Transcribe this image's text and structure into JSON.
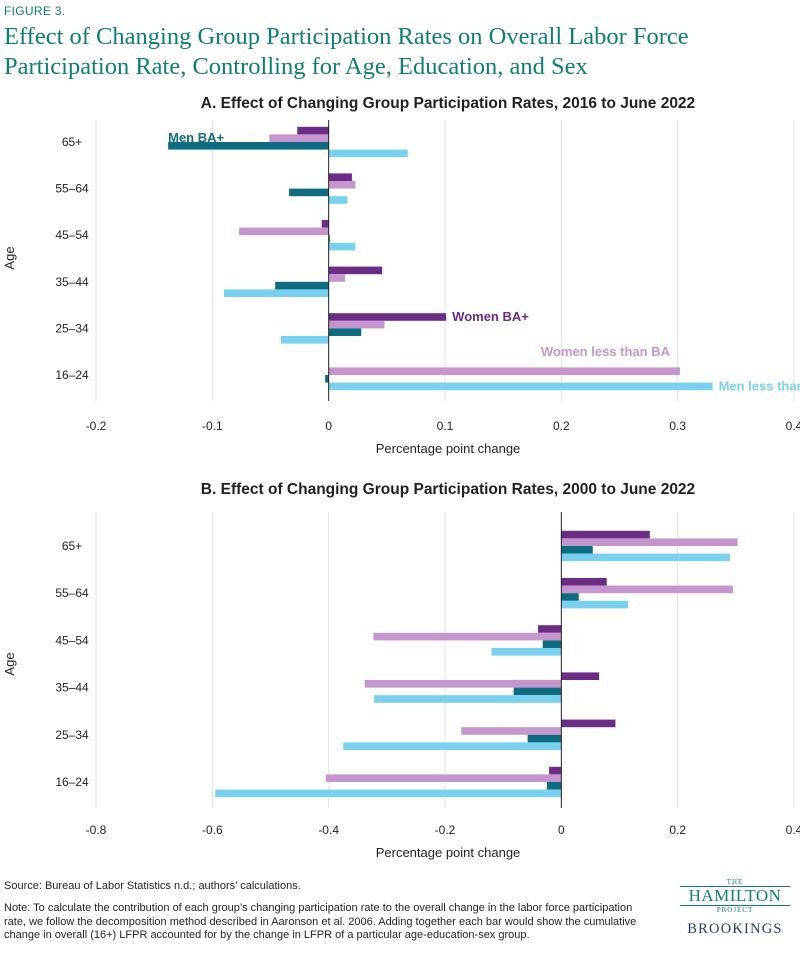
{
  "figure_label": "FIGURE 3.",
  "title": "Effect of Changing Group Participation Rates on Overall Labor Force Participation Rate, Controlling for Age, Education, and Sex",
  "source": "Source: Bureau of Labor Statistics n.d.; authors’ calculations.",
  "note": "Note: To calculate the contribution of each group’s changing participation rate to the overall change in the labor force participation rate, we follow the decomposition method described in Aaronson et al. 2006. Adding together each bar would show the cumulative change in overall (16+) LFPR accounted for by the change in LFPR of a particular age-education-sex group.",
  "logo": {
    "the": "THE",
    "hamilton": "HAMILTON",
    "project": "PROJECT",
    "brookings": "BROOKINGS"
  },
  "colors": {
    "Women BA+": "#6b2c85",
    "Women less than BA": "#c596cd",
    "Men BA+": "#0e6b80",
    "Men less than BA": "#79d0ef",
    "title": "#0f7f75"
  },
  "chart_data": [
    {
      "type": "bar",
      "orientation": "horizontal",
      "title": "A. Effect of Changing Group Participation Rates, 2016 to June 2022",
      "xlabel": "Percentage point change",
      "ylabel": "Age",
      "xlim": [
        -0.2,
        0.4
      ],
      "xticks": [
        -0.2,
        -0.1,
        0,
        0.1,
        0.2,
        0.3,
        0.4
      ],
      "xtick_labels": [
        "-0.2",
        "-0.1",
        "0",
        "0.1",
        "0.2",
        "0.3",
        "0.4"
      ],
      "grid": true,
      "categories": [
        "65+",
        "55–64",
        "45–54",
        "35–44",
        "25–34",
        "16–24"
      ],
      "series": [
        {
          "name": "Women BA+",
          "values": [
            -0.027,
            0.02,
            -0.006,
            0.046,
            0.101,
            0.0
          ]
        },
        {
          "name": "Women less than BA",
          "values": [
            -0.051,
            0.023,
            -0.077,
            0.014,
            0.048,
            0.302
          ]
        },
        {
          "name": "Men BA+",
          "values": [
            -0.138,
            -0.034,
            0.001,
            -0.046,
            0.028,
            -0.003
          ]
        },
        {
          "name": "Men less than BA",
          "values": [
            0.068,
            0.016,
            0.023,
            -0.09,
            -0.041,
            0.33
          ]
        }
      ],
      "annotations": [
        {
          "text": "Men BA+",
          "series": "Men BA+"
        },
        {
          "text": "Men less than BA",
          "series": "Men less than BA"
        },
        {
          "text": "Women BA+",
          "series": "Women BA+"
        },
        {
          "text": "Women less than BA",
          "series": "Women less than BA"
        }
      ]
    },
    {
      "type": "bar",
      "orientation": "horizontal",
      "title": "B. Effect of Changing Group Participation Rates, 2000 to June 2022",
      "xlabel": "Percentage point change",
      "ylabel": "Age",
      "xlim": [
        -0.8,
        0.4
      ],
      "xticks": [
        -0.8,
        -0.6,
        -0.4,
        -0.2,
        0,
        0.2,
        0.4
      ],
      "xtick_labels": [
        "-0.8",
        "-0.6",
        "-0.4",
        "-0.2",
        "0",
        "0.2",
        "0.4"
      ],
      "grid": true,
      "categories": [
        "65+",
        "55–64",
        "45–54",
        "35–44",
        "25–34",
        "16–24"
      ],
      "series": [
        {
          "name": "Women BA+",
          "values": [
            0.152,
            0.078,
            -0.04,
            0.065,
            0.093,
            -0.021
          ]
        },
        {
          "name": "Women less than BA",
          "values": [
            0.303,
            0.295,
            -0.323,
            -0.338,
            -0.172,
            -0.405
          ]
        },
        {
          "name": "Men BA+",
          "values": [
            0.054,
            0.03,
            -0.032,
            -0.082,
            -0.058,
            -0.025
          ]
        },
        {
          "name": "Men less than BA",
          "values": [
            0.29,
            0.115,
            -0.12,
            -0.322,
            -0.375,
            -0.595
          ]
        }
      ]
    }
  ]
}
